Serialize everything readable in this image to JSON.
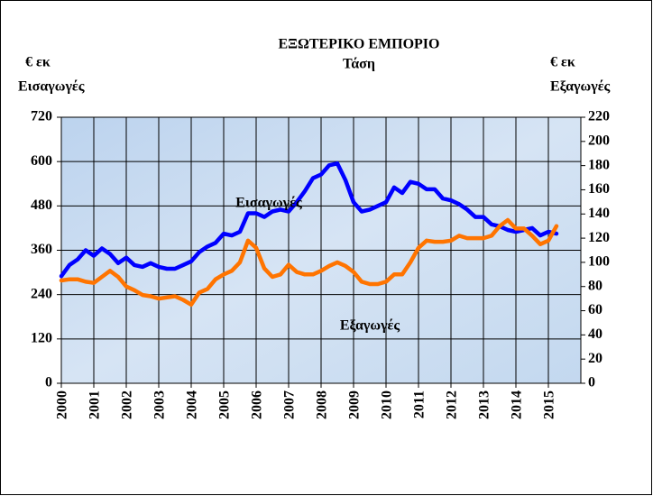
{
  "chart_data": {
    "type": "line",
    "title": "ΕΞΩΤΕΡΙΚΟ ΕΜΠΟΡΙΟ",
    "subtitle": "Τάση",
    "y_label": [
      "€ εκ",
      "Εισαγωγές"
    ],
    "y2_label": [
      "€ εκ",
      "Εξαγωγές"
    ],
    "x": [
      2000,
      2000.25,
      2000.5,
      2000.75,
      2001,
      2001.25,
      2001.5,
      2001.75,
      2002,
      2002.25,
      2002.5,
      2002.75,
      2003,
      2003.25,
      2003.5,
      2003.75,
      2004,
      2004.25,
      2004.5,
      2004.75,
      2005,
      2005.25,
      2005.5,
      2005.75,
      2006,
      2006.25,
      2006.5,
      2006.75,
      2007,
      2007.25,
      2007.5,
      2007.75,
      2008,
      2008.25,
      2008.5,
      2008.75,
      2009,
      2009.25,
      2009.5,
      2009.75,
      2010,
      2010.25,
      2010.5,
      2010.75,
      2011,
      2011.25,
      2011.5,
      2011.75,
      2012,
      2012.25,
      2012.5,
      2012.75,
      2013,
      2013.25,
      2013.5,
      2013.75,
      2014,
      2014.25,
      2014.5,
      2014.75,
      2015,
      2015.25
    ],
    "series": [
      {
        "name": "Εισαγωγές",
        "color": "#0000ff",
        "values": [
          290,
          320,
          335,
          360,
          345,
          365,
          350,
          325,
          340,
          320,
          315,
          325,
          315,
          310,
          310,
          320,
          330,
          355,
          370,
          380,
          405,
          400,
          410,
          460,
          460,
          450,
          465,
          470,
          465,
          490,
          520,
          555,
          565,
          590,
          595,
          550,
          490,
          465,
          470,
          480,
          490,
          530,
          515,
          545,
          540,
          525,
          525,
          500,
          495,
          485,
          470,
          450,
          450,
          430,
          425,
          415,
          410,
          415,
          420,
          400,
          410,
          405
        ]
      },
      {
        "name": "Εξαγωγές",
        "color": "#ff7400",
        "axis": "y2",
        "values": [
          85,
          86,
          86,
          84,
          83,
          88,
          93,
          88,
          80,
          77,
          73,
          72,
          70,
          71,
          72,
          69,
          65,
          75,
          78,
          86,
          90,
          93,
          100,
          118,
          112,
          95,
          88,
          90,
          98,
          92,
          90,
          90,
          93,
          97,
          100,
          97,
          92,
          84,
          82,
          82,
          84,
          90,
          90,
          100,
          112,
          118,
          117,
          117,
          118,
          122,
          120,
          120,
          120,
          122,
          130,
          135,
          128,
          128,
          122,
          115,
          118,
          130
        ]
      }
    ],
    "xlim": [
      2000,
      2016
    ],
    "xticks": [
      2000,
      2001,
      2002,
      2003,
      2004,
      2005,
      2006,
      2007,
      2008,
      2009,
      2010,
      2011,
      2012,
      2013,
      2014,
      2015
    ],
    "ylim": [
      0,
      720
    ],
    "yticks": [
      0,
      120,
      240,
      360,
      480,
      600,
      720
    ],
    "y2lim": [
      0,
      220
    ],
    "y2ticks": [
      0,
      20,
      40,
      60,
      80,
      100,
      120,
      140,
      160,
      180,
      200,
      220
    ],
    "grid": true
  }
}
